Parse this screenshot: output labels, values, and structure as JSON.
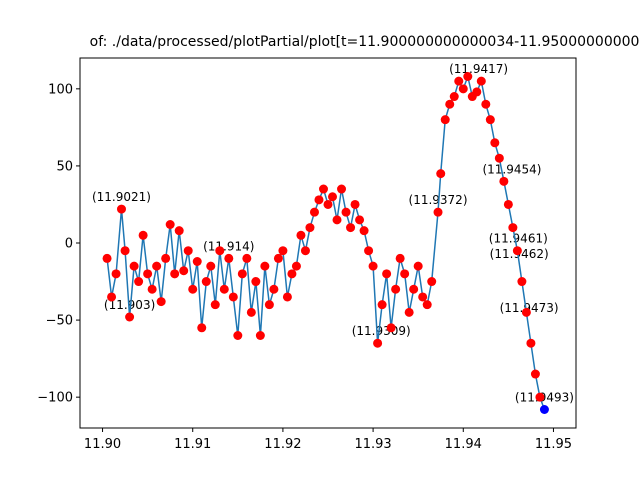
{
  "chart_data": {
    "type": "scatter",
    "title": "of: ./data/processed/plotPartial/plot[t=11.900000000000034-11.950000000000",
    "xlabel": "",
    "ylabel": "",
    "xlim": [
      11.8975,
      11.9525
    ],
    "ylim": [
      -120,
      120
    ],
    "xticks": [
      11.9,
      11.91,
      11.92,
      11.93,
      11.94,
      11.95
    ],
    "xtick_labels": [
      "11.90",
      "11.91",
      "11.92",
      "11.93",
      "11.94",
      "11.95"
    ],
    "yticks": [
      -100,
      -50,
      0,
      50,
      100
    ],
    "ytick_labels": [
      "−100",
      "−50",
      "0",
      "50",
      "100"
    ],
    "grid": false,
    "line_color": "#1f77b4",
    "marker_color": "#ff0000",
    "end_marker_color": "#0000ff",
    "series": [
      {
        "x": [
          11.9005,
          11.901,
          11.9015,
          11.9021,
          11.9025,
          11.903,
          11.9035,
          11.904,
          11.9045,
          11.905,
          11.9055,
          11.906,
          11.9065,
          11.907,
          11.9075,
          11.908,
          11.9085,
          11.909,
          11.9095,
          11.91,
          11.9105,
          11.911,
          11.9115,
          11.912,
          11.9125,
          11.913,
          11.9135,
          11.914,
          11.9145,
          11.915,
          11.9155,
          11.916,
          11.9165,
          11.917,
          11.9175,
          11.918,
          11.9185,
          11.919,
          11.9195,
          11.92,
          11.9205,
          11.921,
          11.9215,
          11.922,
          11.9225,
          11.923,
          11.9235,
          11.924,
          11.9245,
          11.925,
          11.9255,
          11.926,
          11.9265,
          11.927,
          11.9275,
          11.928,
          11.9285,
          11.929,
          11.9295,
          11.93,
          11.9305,
          11.931,
          11.9315,
          11.932,
          11.9325,
          11.933,
          11.9335,
          11.934,
          11.9345,
          11.935,
          11.9355,
          11.936,
          11.9365,
          11.9372,
          11.9375,
          11.938,
          11.9385,
          11.939,
          11.9395,
          11.94,
          11.9405,
          11.941,
          11.9415,
          11.942,
          11.9425,
          11.943,
          11.9435,
          11.944,
          11.9445,
          11.945,
          11.9455,
          11.946,
          11.9465,
          11.947,
          11.9475,
          11.948,
          11.9485,
          11.949
        ],
        "y": [
          -10,
          -35,
          -20,
          22,
          -5,
          -48,
          -15,
          -25,
          5,
          -20,
          -30,
          -15,
          -38,
          -10,
          12,
          -20,
          8,
          -18,
          -5,
          -30,
          -12,
          -55,
          -25,
          -15,
          -40,
          -5,
          -30,
          -10,
          -35,
          -60,
          -20,
          -10,
          -45,
          -25,
          -60,
          -15,
          -40,
          -30,
          -10,
          -5,
          -35,
          -20,
          -15,
          5,
          -5,
          10,
          20,
          28,
          35,
          25,
          30,
          15,
          35,
          20,
          10,
          25,
          15,
          8,
          -5,
          -15,
          -65,
          -40,
          -20,
          -55,
          -30,
          -10,
          -20,
          -45,
          -30,
          -15,
          -35,
          -40,
          -25,
          20,
          45,
          80,
          90,
          95,
          105,
          100,
          108,
          95,
          98,
          105,
          90,
          80,
          65,
          55,
          40,
          25,
          10,
          -5,
          -25,
          -45,
          -65,
          -85,
          -100,
          -108
        ]
      }
    ],
    "annotations": [
      {
        "text": "(11.9021)",
        "x": 11.9021,
        "y": 22
      },
      {
        "text": "(11.903)",
        "x": 11.903,
        "y": -48
      },
      {
        "text": "(11.914)",
        "x": 11.914,
        "y": -10
      },
      {
        "text": "(11.9372)",
        "x": 11.9372,
        "y": 20
      },
      {
        "text": "(11.9417)",
        "x": 11.9417,
        "y": 105
      },
      {
        "text": "(11.9309)",
        "x": 11.9309,
        "y": -65
      },
      {
        "text": "(11.9454)",
        "x": 11.9454,
        "y": 40
      },
      {
        "text": "(11.9461)",
        "x": 11.9461,
        "y": -5
      },
      {
        "text": "(11.9462)",
        "x": 11.9462,
        "y": -15
      },
      {
        "text": "(11.9473)",
        "x": 11.9473,
        "y": -50
      },
      {
        "text": "(11.9493)",
        "x": 11.949,
        "y": -108
      }
    ]
  }
}
